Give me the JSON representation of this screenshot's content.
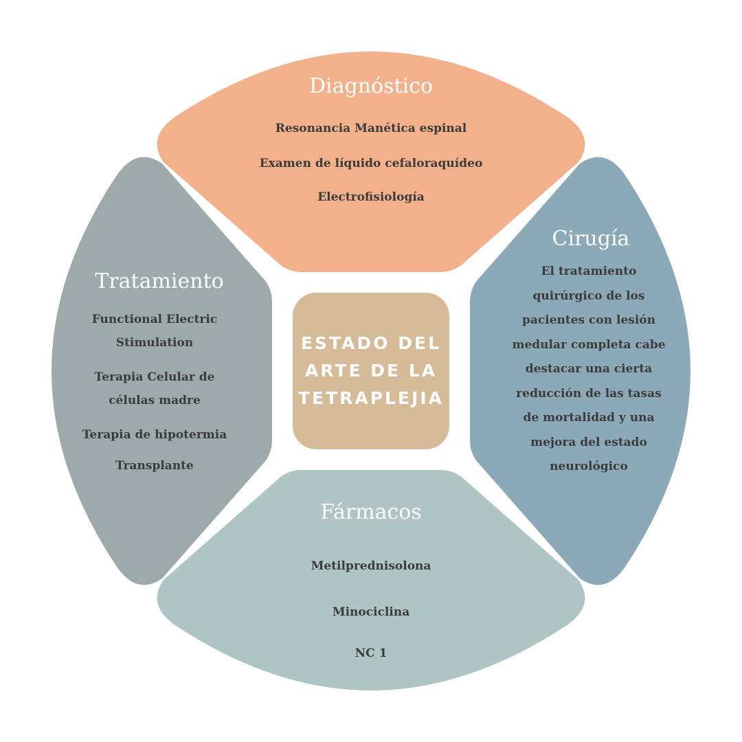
{
  "center": {
    "title": "ESTADO DEL ARTE DE LA TETRAPLEJIA",
    "color": "#d6bb99"
  },
  "sections": {
    "diagnostico": {
      "title": "Diagnóstico",
      "color": "#f2b18b",
      "items": [
        "Resonancia Manética espinal",
        "Examen de líquido cefaloraquídeo",
        "Electrofisiología"
      ]
    },
    "cirugia": {
      "title": "Cirugía",
      "color": "#8ca9b8",
      "text": "El tratamiento quirúrgico de los pacientes con lesión medular completa cabe destacar una cierta reducción de las tasas de mortalidad y una mejora del estado neurológico"
    },
    "farmacos": {
      "title": "Fármacos",
      "color": "#aec5c4",
      "items": [
        "Metilprednisolona",
        "Minociclina",
        "NC 1"
      ]
    },
    "tratamiento": {
      "title": "Tratamiento",
      "color": "#9ea9aa",
      "items": [
        "Functional Electric Stimulation",
        "Terapia Celular de células madre",
        "Terapia de hipotermia",
        "Transplante"
      ]
    }
  }
}
